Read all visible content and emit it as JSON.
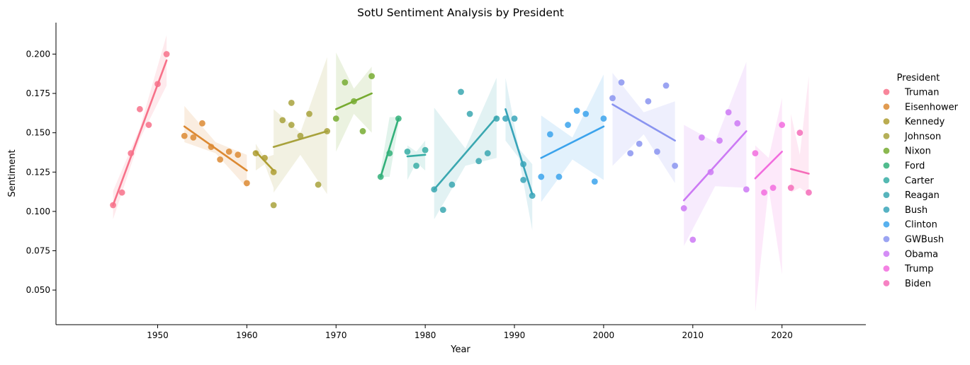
{
  "chart_data": {
    "type": "scatter",
    "title": "SotU Sentiment Analysis by President",
    "xlabel": "Year",
    "ylabel": "Sentiment",
    "xlim": [
      1938.6,
      2029.4
    ],
    "ylim": [
      0.028,
      0.22
    ],
    "x_ticks": [
      1950,
      1960,
      1970,
      1980,
      1990,
      2000,
      2010,
      2020
    ],
    "x_tick_labels": [
      "1950",
      "1960",
      "1970",
      "1980",
      "1990",
      "2000",
      "2010",
      "2020"
    ],
    "y_ticks": [
      0.05,
      0.075,
      0.1,
      0.125,
      0.15,
      0.175,
      0.2
    ],
    "y_tick_labels": [
      "0.050",
      "0.075",
      "0.100",
      "0.125",
      "0.150",
      "0.175",
      "0.200"
    ],
    "grid": false,
    "legend_title": "President",
    "legend_placement": "right",
    "series": [
      {
        "name": "Truman",
        "color": "#f77189",
        "points": [
          [
            1945,
            0.104
          ],
          [
            1946,
            0.112
          ],
          [
            1947,
            0.137
          ],
          [
            1948,
            0.165
          ],
          [
            1949,
            0.155
          ],
          [
            1950,
            0.181
          ],
          [
            1951,
            0.2
          ]
        ],
        "fit": [
          [
            1945,
            0.104
          ],
          [
            1951,
            0.196
          ]
        ],
        "band": {
          "upper": [
            [
              1945,
              0.113
            ],
            [
              1948,
              0.153
            ],
            [
              1951,
              0.212
            ]
          ],
          "lower": [
            [
              1945,
              0.095
            ],
            [
              1948,
              0.146
            ],
            [
              1951,
              0.18
            ]
          ]
        }
      },
      {
        "name": "Eisenhower",
        "color": "#dc8932",
        "points": [
          [
            1953,
            0.148
          ],
          [
            1954,
            0.147
          ],
          [
            1955,
            0.156
          ],
          [
            1956,
            0.141
          ],
          [
            1957,
            0.133
          ],
          [
            1958,
            0.138
          ],
          [
            1959,
            0.136
          ],
          [
            1960,
            0.118
          ]
        ],
        "fit": [
          [
            1953,
            0.154
          ],
          [
            1960,
            0.126
          ]
        ],
        "band": {
          "upper": [
            [
              1953,
              0.167
            ],
            [
              1956.5,
              0.144
            ],
            [
              1960,
              0.136
            ]
          ],
          "lower": [
            [
              1953,
              0.144
            ],
            [
              1956.5,
              0.137
            ],
            [
              1960,
              0.115
            ]
          ]
        }
      },
      {
        "name": "Kennedy",
        "color": "#ae9d31",
        "points": [
          [
            1961,
            0.137
          ],
          [
            1962,
            0.134
          ],
          [
            1963,
            0.125
          ]
        ],
        "fit": [
          [
            1961,
            0.138
          ],
          [
            1963,
            0.126
          ]
        ],
        "band": {
          "upper": [
            [
              1961,
              0.143
            ],
            [
              1962,
              0.134
            ],
            [
              1963,
              0.136
            ]
          ],
          "lower": [
            [
              1961,
              0.126
            ],
            [
              1962,
              0.13
            ],
            [
              1963,
              0.115
            ]
          ]
        }
      },
      {
        "name": "Johnson",
        "color": "#a8a23c",
        "points": [
          [
            1963,
            0.104
          ],
          [
            1964,
            0.158
          ],
          [
            1965,
            0.169
          ],
          [
            1965,
            0.155
          ],
          [
            1966,
            0.148
          ],
          [
            1967,
            0.162
          ],
          [
            1968,
            0.117
          ],
          [
            1969,
            0.151
          ]
        ],
        "fit": [
          [
            1963,
            0.141
          ],
          [
            1969,
            0.151
          ]
        ],
        "band": {
          "upper": [
            [
              1963,
              0.165
            ],
            [
              1966,
              0.15
            ],
            [
              1969,
              0.198
            ]
          ],
          "lower": [
            [
              1963,
              0.112
            ],
            [
              1966,
              0.136
            ],
            [
              1969,
              0.111
            ]
          ]
        }
      },
      {
        "name": "Nixon",
        "color": "#77ab31",
        "points": [
          [
            1970,
            0.159
          ],
          [
            1971,
            0.182
          ],
          [
            1972,
            0.17
          ],
          [
            1973,
            0.151
          ],
          [
            1974,
            0.186
          ]
        ],
        "fit": [
          [
            1970,
            0.165
          ],
          [
            1974,
            0.175
          ]
        ],
        "band": {
          "upper": [
            [
              1970,
              0.201
            ],
            [
              1972,
              0.178
            ],
            [
              1974,
              0.192
            ]
          ],
          "lower": [
            [
              1970,
              0.138
            ],
            [
              1972,
              0.162
            ],
            [
              1974,
              0.15
            ]
          ]
        }
      },
      {
        "name": "Ford",
        "color": "#33b07a",
        "points": [
          [
            1975,
            0.122
          ],
          [
            1976,
            0.137
          ],
          [
            1977,
            0.159
          ]
        ],
        "fit": [
          [
            1975,
            0.122
          ],
          [
            1977,
            0.159
          ]
        ],
        "band": {
          "upper": [
            [
              1975,
              0.126
            ],
            [
              1976,
              0.16
            ],
            [
              1977,
              0.16
            ]
          ],
          "lower": [
            [
              1975,
              0.122
            ],
            [
              1976,
              0.122
            ],
            [
              1977,
              0.155
            ]
          ]
        }
      },
      {
        "name": "Carter",
        "color": "#36ada4",
        "points": [
          [
            1978,
            0.138
          ],
          [
            1979,
            0.129
          ],
          [
            1980,
            0.139
          ]
        ],
        "fit": [
          [
            1978,
            0.135
          ],
          [
            1980,
            0.136
          ]
        ],
        "band": {
          "upper": [
            [
              1978,
              0.142
            ],
            [
              1979,
              0.138
            ],
            [
              1980,
              0.145
            ]
          ],
          "lower": [
            [
              1978,
              0.12
            ],
            [
              1979,
              0.131
            ],
            [
              1980,
              0.126
            ]
          ]
        }
      },
      {
        "name": "Reagan",
        "color": "#3aa7b0",
        "points": [
          [
            1981,
            0.114
          ],
          [
            1982,
            0.101
          ],
          [
            1983,
            0.117
          ],
          [
            1984,
            0.176
          ],
          [
            1985,
            0.162
          ],
          [
            1986,
            0.132
          ],
          [
            1987,
            0.137
          ],
          [
            1988,
            0.159
          ]
        ],
        "fit": [
          [
            1981,
            0.114
          ],
          [
            1988,
            0.16
          ]
        ],
        "band": {
          "upper": [
            [
              1981,
              0.166
            ],
            [
              1984.5,
              0.14
            ],
            [
              1988,
              0.185
            ]
          ],
          "lower": [
            [
              1981,
              0.095
            ],
            [
              1984.5,
              0.129
            ],
            [
              1988,
              0.134
            ]
          ]
        }
      },
      {
        "name": "Bush",
        "color": "#38a4b9",
        "points": [
          [
            1989,
            0.159
          ],
          [
            1990,
            0.159
          ],
          [
            1991,
            0.13
          ],
          [
            1991,
            0.12
          ],
          [
            1992,
            0.11
          ]
        ],
        "fit": [
          [
            1989,
            0.165
          ],
          [
            1992,
            0.111
          ]
        ],
        "band": {
          "upper": [
            [
              1989,
              0.185
            ],
            [
              1990.5,
              0.14
            ],
            [
              1992,
              0.13
            ]
          ],
          "lower": [
            [
              1989,
              0.145
            ],
            [
              1990.5,
              0.134
            ],
            [
              1992,
              0.088
            ]
          ]
        }
      },
      {
        "name": "Clinton",
        "color": "#3ba3ec",
        "points": [
          [
            1993,
            0.122
          ],
          [
            1994,
            0.149
          ],
          [
            1995,
            0.122
          ],
          [
            1996,
            0.155
          ],
          [
            1997,
            0.164
          ],
          [
            1998,
            0.162
          ],
          [
            1999,
            0.119
          ],
          [
            2000,
            0.159
          ]
        ],
        "fit": [
          [
            1993,
            0.134
          ],
          [
            2000,
            0.154
          ]
        ],
        "band": {
          "upper": [
            [
              1993,
              0.161
            ],
            [
              1996.5,
              0.147
            ],
            [
              2000,
              0.187
            ]
          ],
          "lower": [
            [
              1993,
              0.106
            ],
            [
              1996.5,
              0.133
            ],
            [
              2000,
              0.12
            ]
          ]
        }
      },
      {
        "name": "GWBush",
        "color": "#8a94f0",
        "points": [
          [
            2001,
            0.172
          ],
          [
            2002,
            0.182
          ],
          [
            2003,
            0.137
          ],
          [
            2004,
            0.143
          ],
          [
            2005,
            0.17
          ],
          [
            2006,
            0.138
          ],
          [
            2007,
            0.18
          ],
          [
            2008,
            0.129
          ]
        ],
        "fit": [
          [
            2001,
            0.168
          ],
          [
            2008,
            0.145
          ]
        ],
        "band": {
          "upper": [
            [
              2001,
              0.188
            ],
            [
              2004.5,
              0.163
            ],
            [
              2008,
              0.17
            ]
          ],
          "lower": [
            [
              2001,
              0.129
            ],
            [
              2004.5,
              0.149
            ],
            [
              2008,
              0.118
            ]
          ]
        }
      },
      {
        "name": "Obama",
        "color": "#cc79f4",
        "points": [
          [
            2009,
            0.102
          ],
          [
            2010,
            0.082
          ],
          [
            2011,
            0.147
          ],
          [
            2012,
            0.125
          ],
          [
            2013,
            0.145
          ],
          [
            2014,
            0.163
          ],
          [
            2015,
            0.156
          ],
          [
            2016,
            0.114
          ]
        ],
        "fit": [
          [
            2009,
            0.107
          ],
          [
            2016,
            0.151
          ]
        ],
        "band": {
          "upper": [
            [
              2009,
              0.155
            ],
            [
              2012.5,
              0.144
            ],
            [
              2016,
              0.195
            ]
          ],
          "lower": [
            [
              2009,
              0.078
            ],
            [
              2012.5,
              0.116
            ],
            [
              2016,
              0.115
            ]
          ]
        }
      },
      {
        "name": "Trump",
        "color": "#f26cde",
        "points": [
          [
            2017,
            0.137
          ],
          [
            2018,
            0.112
          ],
          [
            2019,
            0.115
          ],
          [
            2020,
            0.155
          ]
        ],
        "fit": [
          [
            2017,
            0.121
          ],
          [
            2020,
            0.138
          ]
        ],
        "band": {
          "upper": [
            [
              2017,
              0.142
            ],
            [
              2018.5,
              0.134
            ],
            [
              2020,
              0.172
            ]
          ],
          "lower": [
            [
              2017,
              0.036
            ],
            [
              2018.5,
              0.115
            ],
            [
              2020,
              0.06
            ]
          ]
        }
      },
      {
        "name": "Biden",
        "color": "#f56cb8",
        "points": [
          [
            2021,
            0.115
          ],
          [
            2022,
            0.15
          ],
          [
            2023,
            0.112
          ]
        ],
        "fit": [
          [
            2021,
            0.127
          ],
          [
            2023,
            0.124
          ]
        ],
        "band": {
          "upper": [
            [
              2021,
              0.162
            ],
            [
              2022,
              0.136
            ],
            [
              2023,
              0.186
            ]
          ],
          "lower": [
            [
              2021,
              0.112
            ],
            [
              2022,
              0.115
            ],
            [
              2023,
              0.111
            ]
          ]
        }
      }
    ]
  }
}
